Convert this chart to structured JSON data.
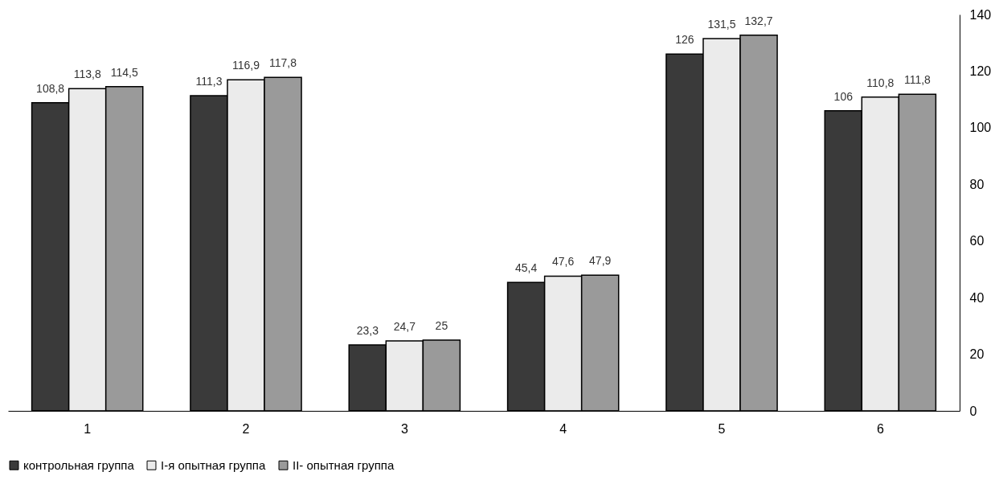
{
  "chart_data": {
    "type": "bar",
    "categories": [
      "1",
      "2",
      "3",
      "4",
      "5",
      "6"
    ],
    "series": [
      {
        "name": "контрольная группа",
        "color": "#3a3a3a",
        "values": [
          108.8,
          111.3,
          23.3,
          45.4,
          126,
          106
        ],
        "value_labels": [
          "108,8",
          "111,3",
          "23,3",
          "45,4",
          "126",
          "106"
        ]
      },
      {
        "name": "I-я опытная группа",
        "color": "#ebebeb",
        "values": [
          113.8,
          116.9,
          24.7,
          47.6,
          131.5,
          110.8
        ],
        "value_labels": [
          "113,8",
          "116,9",
          "24,7",
          "47,6",
          "131,5",
          "110,8"
        ]
      },
      {
        "name": "II- опытная группа",
        "color": "#9a9a9a",
        "values": [
          114.5,
          117.8,
          25,
          47.9,
          132.7,
          111.8
        ],
        "value_labels": [
          "114,5",
          "117,8",
          "25",
          "47,9",
          "132,7",
          "111,8"
        ]
      }
    ],
    "ylim": [
      0,
      140
    ],
    "yticks": [
      0,
      20,
      40,
      60,
      80,
      100,
      120,
      140
    ],
    "grid": false,
    "legend": "bottom"
  }
}
